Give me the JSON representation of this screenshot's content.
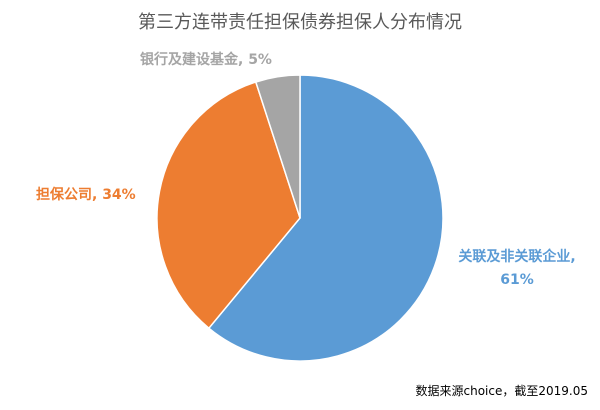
{
  "chart_data": {
    "type": "pie",
    "title": "第三方连带责任担保债券担保人分布情况",
    "values": [
      61,
      34,
      5
    ],
    "value_labels": [
      "关联及非关联企业, 61%",
      "担保公司, 34%",
      "银行及建设基金, 5%"
    ],
    "colors": [
      "#5b9bd5",
      "#ed7d31",
      "#a5a5a5"
    ],
    "note": "数据来源choice，截至2019.05"
  }
}
